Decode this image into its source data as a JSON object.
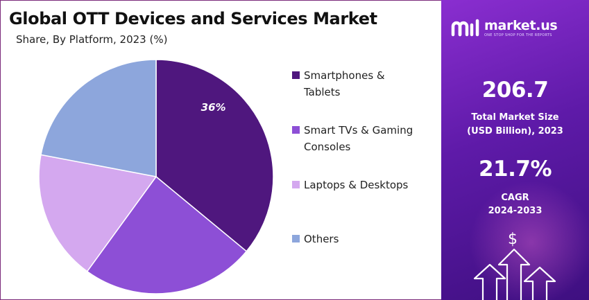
{
  "title": "Global OTT Devices and Services Market",
  "subtitle": "Share, By Platform, 2023 (%)",
  "chart_data": {
    "type": "pie",
    "title": "Global OTT Devices and Services Market",
    "subtitle": "Share, By Platform, 2023 (%)",
    "start_angle_deg": 0,
    "direction": "clockwise",
    "legend_position": "right",
    "slices": [
      {
        "label": "Smartphones & Tablets",
        "value": 36,
        "data_label": "36%",
        "color": "#4f177e"
      },
      {
        "label": "Smart TVs & Gaming Consoles",
        "value": 24,
        "data_label": "",
        "color": "#8d4fd6"
      },
      {
        "label": "Laptops & Desktops",
        "value": 18,
        "data_label": "",
        "color": "#d4a8ef"
      },
      {
        "label": "Others",
        "value": 22,
        "data_label": "",
        "color": "#8da6dc"
      }
    ]
  },
  "legend": [
    {
      "lines": [
        "Smartphones &",
        "Tablets"
      ],
      "color": "#4f177e"
    },
    {
      "lines": [
        "Smart TVs & Gaming",
        "Consoles"
      ],
      "color": "#8d4fd6"
    },
    {
      "lines": [
        "Laptops & Desktops"
      ],
      "color": "#d4a8ef"
    },
    {
      "lines": [
        "Others"
      ],
      "color": "#8da6dc"
    }
  ],
  "side_panel": {
    "brand_name": "market.us",
    "brand_tagline": "ONE STOP SHOP FOR THE REPORTS",
    "market_size_value": "206.7",
    "market_size_label_line1": "Total Market Size",
    "market_size_label_line2": "(USD Billion), 2023",
    "cagr_value": "21.7%",
    "cagr_label_line1": "CAGR",
    "cagr_label_line2": "2024-2033",
    "currency_symbol": "$",
    "gradient_colors": [
      "#8a2ed0",
      "#3e0f80"
    ]
  }
}
